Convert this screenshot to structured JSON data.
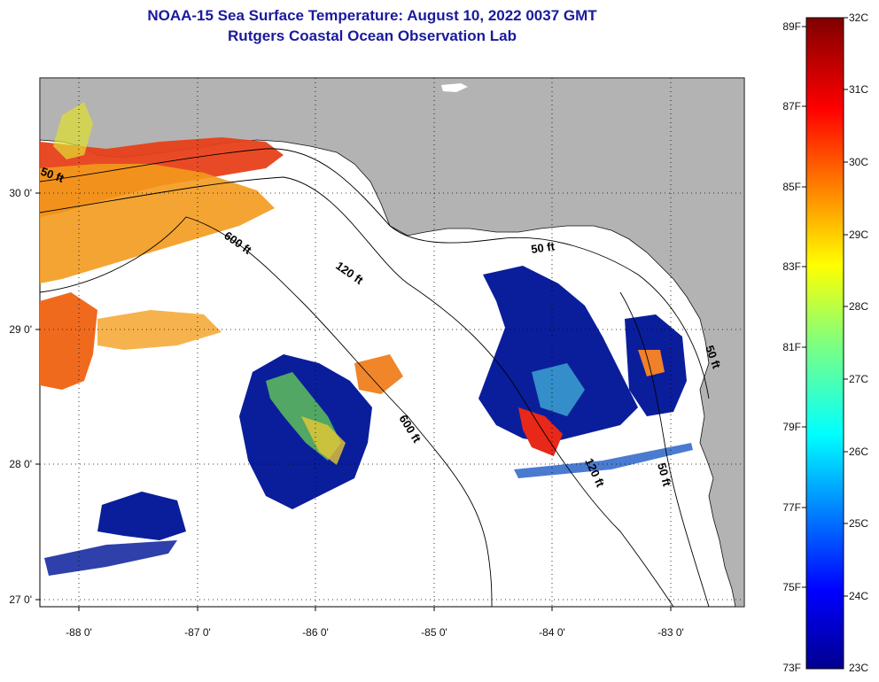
{
  "title": {
    "line1": "NOAA-15 Sea Surface Temperature:  August 10, 2022 0037 GMT",
    "line2": "Rutgers Coastal Ocean Observation Lab"
  },
  "axes": {
    "longitude_ticks": [
      "-88 0'",
      "-87 0'",
      "-86 0'",
      "-85 0'",
      "-84 0'",
      "-83 0'"
    ],
    "latitude_ticks": [
      "30 0'",
      "29 0'",
      "28 0'",
      "27 0'"
    ]
  },
  "contours": {
    "labels": [
      "50 ft",
      "600 ft",
      "120 ft",
      "50 ft",
      "600 ft",
      "120 ft",
      "50 ft",
      "50 ft"
    ]
  },
  "colorbar": {
    "fahrenheit": [
      "89F",
      "87F",
      "85F",
      "83F",
      "81F",
      "79F",
      "77F",
      "75F",
      "73F"
    ],
    "celsius": [
      "32C",
      "31C",
      "30C",
      "29C",
      "28C",
      "27C",
      "26C",
      "25C",
      "24C",
      "23C"
    ]
  },
  "colors": {
    "land": "#b3b3b3",
    "title": "#1a1a9c",
    "warm": "#e8401a",
    "cool": "#0a1e9c"
  }
}
